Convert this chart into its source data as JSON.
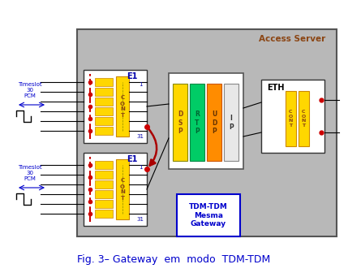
{
  "title": "Fig. 3– Gateway  em  modo  TDM-TDM",
  "title_color": "#0000CC",
  "title_fontsize": 9,
  "server_label": "Access Server",
  "server_label_color": "#8B4513",
  "gateway_text": "TDM-TDM\nMesma\nGateway",
  "gateway_text_color": "#0000CC"
}
